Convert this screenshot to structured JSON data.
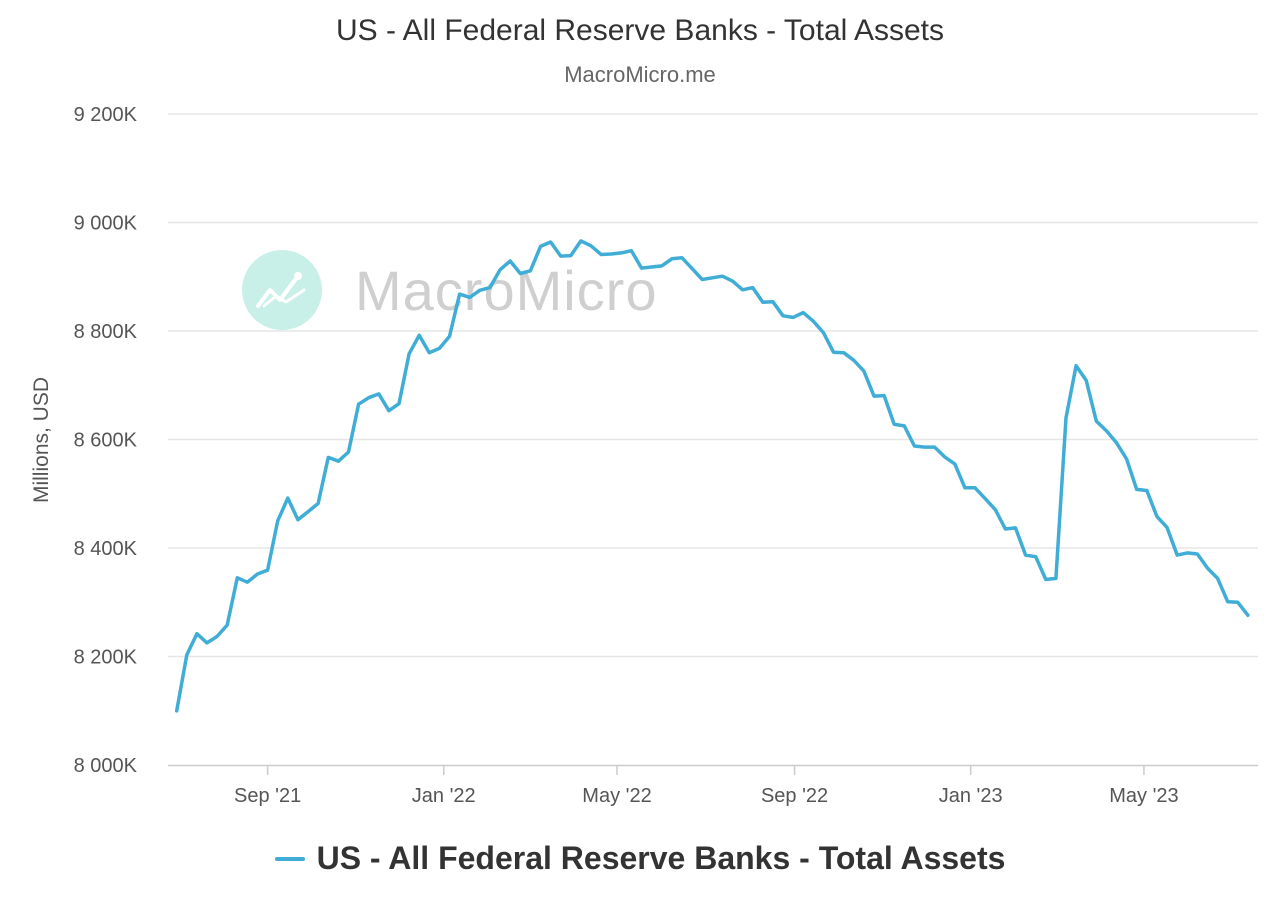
{
  "chart_data": {
    "type": "line",
    "title": "US - All Federal Reserve Banks - Total Assets",
    "subtitle": "MacroMicro.me",
    "ylabel": "Millions, USD",
    "xlabel": "",
    "ylim": [
      8000000,
      9200000
    ],
    "yticks": [
      8000000,
      8200000,
      8400000,
      8600000,
      8800000,
      9000000,
      9200000
    ],
    "ytick_labels": [
      "8 000K",
      "8 200K",
      "8 400K",
      "8 600K",
      "8 800K",
      "9 000K",
      "9 200K"
    ],
    "xlim": [
      "2021-06-24",
      "2023-07-19"
    ],
    "xticks": [
      {
        "label": "Sep '21",
        "date": "2021-09-01"
      },
      {
        "label": "Jan '22",
        "date": "2022-01-01"
      },
      {
        "label": "May '22",
        "date": "2022-05-01"
      },
      {
        "label": "Sep '22",
        "date": "2022-09-01"
      },
      {
        "label": "Jan '23",
        "date": "2023-01-01"
      },
      {
        "label": "May '23",
        "date": "2023-05-01"
      }
    ],
    "grid": true,
    "legend_position": "bottom",
    "series": [
      {
        "name": "US - All Federal Reserve Banks - Total Assets",
        "color": "#3fadd6",
        "points": [
          [
            "2021-06-30",
            8100000
          ],
          [
            "2021-07-07",
            8203000
          ],
          [
            "2021-07-14",
            8242000
          ],
          [
            "2021-07-21",
            8225000
          ],
          [
            "2021-07-28",
            8237000
          ],
          [
            "2021-08-04",
            8258000
          ],
          [
            "2021-08-11",
            8345000
          ],
          [
            "2021-08-18",
            8337000
          ],
          [
            "2021-08-25",
            8352000
          ],
          [
            "2021-09-01",
            8359000
          ],
          [
            "2021-09-08",
            8450000
          ],
          [
            "2021-09-15",
            8492000
          ],
          [
            "2021-09-22",
            8452000
          ],
          [
            "2021-09-29",
            8467000
          ],
          [
            "2021-10-06",
            8482000
          ],
          [
            "2021-10-13",
            8567000
          ],
          [
            "2021-10-20",
            8560000
          ],
          [
            "2021-10-27",
            8577000
          ],
          [
            "2021-11-03",
            8665000
          ],
          [
            "2021-11-10",
            8677000
          ],
          [
            "2021-11-17",
            8684000
          ],
          [
            "2021-11-24",
            8653000
          ],
          [
            "2021-12-01",
            8666000
          ],
          [
            "2021-12-08",
            8758000
          ],
          [
            "2021-12-15",
            8792000
          ],
          [
            "2021-12-22",
            8760000
          ],
          [
            "2021-12-29",
            8768000
          ],
          [
            "2022-01-05",
            8790000
          ],
          [
            "2022-01-12",
            8868000
          ],
          [
            "2022-01-19",
            8862000
          ],
          [
            "2022-01-26",
            8875000
          ],
          [
            "2022-02-02",
            8880000
          ],
          [
            "2022-02-09",
            8913000
          ],
          [
            "2022-02-16",
            8929000
          ],
          [
            "2022-02-23",
            8906000
          ],
          [
            "2022-03-02",
            8911000
          ],
          [
            "2022-03-09",
            8956000
          ],
          [
            "2022-03-16",
            8964000
          ],
          [
            "2022-03-23",
            8938000
          ],
          [
            "2022-03-30",
            8939000
          ],
          [
            "2022-04-06",
            8966000
          ],
          [
            "2022-04-13",
            8957000
          ],
          [
            "2022-04-20",
            8941000
          ],
          [
            "2022-04-27",
            8942000
          ],
          [
            "2022-05-04",
            8944000
          ],
          [
            "2022-05-11",
            8948000
          ],
          [
            "2022-05-18",
            8916000
          ],
          [
            "2022-05-25",
            8918000
          ],
          [
            "2022-06-01",
            8920000
          ],
          [
            "2022-06-08",
            8933000
          ],
          [
            "2022-06-15",
            8935000
          ],
          [
            "2022-06-22",
            8915000
          ],
          [
            "2022-06-29",
            8895000
          ],
          [
            "2022-07-06",
            8898000
          ],
          [
            "2022-07-13",
            8901000
          ],
          [
            "2022-07-20",
            8892000
          ],
          [
            "2022-07-27",
            8876000
          ],
          [
            "2022-08-03",
            8880000
          ],
          [
            "2022-08-10",
            8853000
          ],
          [
            "2022-08-17",
            8854000
          ],
          [
            "2022-08-24",
            8828000
          ],
          [
            "2022-08-31",
            8825000
          ],
          [
            "2022-09-07",
            8834000
          ],
          [
            "2022-09-14",
            8818000
          ],
          [
            "2022-09-21",
            8797000
          ],
          [
            "2022-09-28",
            8761000
          ],
          [
            "2022-10-05",
            8760000
          ],
          [
            "2022-10-12",
            8746000
          ],
          [
            "2022-10-19",
            8726000
          ],
          [
            "2022-10-26",
            8680000
          ],
          [
            "2022-11-02",
            8681000
          ],
          [
            "2022-11-09",
            8628000
          ],
          [
            "2022-11-16",
            8625000
          ],
          [
            "2022-11-23",
            8588000
          ],
          [
            "2022-11-30",
            8586000
          ],
          [
            "2022-12-07",
            8586000
          ],
          [
            "2022-12-14",
            8568000
          ],
          [
            "2022-12-21",
            8555000
          ],
          [
            "2022-12-28",
            8511000
          ],
          [
            "2023-01-04",
            8511000
          ],
          [
            "2023-01-11",
            8491000
          ],
          [
            "2023-01-18",
            8471000
          ],
          [
            "2023-01-25",
            8435000
          ],
          [
            "2023-02-01",
            8437000
          ],
          [
            "2023-02-08",
            8387000
          ],
          [
            "2023-02-15",
            8384000
          ],
          [
            "2023-02-22",
            8342000
          ],
          [
            "2023-03-01",
            8344000
          ],
          [
            "2023-03-08",
            8640000
          ],
          [
            "2023-03-15",
            8736000
          ],
          [
            "2023-03-22",
            8709000
          ],
          [
            "2023-03-29",
            8634000
          ],
          [
            "2023-04-05",
            8616000
          ],
          [
            "2023-04-12",
            8594000
          ],
          [
            "2023-04-19",
            8564000
          ],
          [
            "2023-04-26",
            8508000
          ],
          [
            "2023-05-03",
            8506000
          ],
          [
            "2023-05-10",
            8458000
          ],
          [
            "2023-05-17",
            8438000
          ],
          [
            "2023-05-24",
            8387000
          ],
          [
            "2023-05-31",
            8391000
          ],
          [
            "2023-06-07",
            8389000
          ],
          [
            "2023-06-14",
            8363000
          ],
          [
            "2023-06-21",
            8344000
          ],
          [
            "2023-06-28",
            8301000
          ],
          [
            "2023-07-05",
            8300000
          ],
          [
            "2023-07-12",
            8276000
          ]
        ]
      }
    ]
  },
  "watermark": {
    "text": "MacroMicro",
    "icon": "trend-chart-icon",
    "circle_color": "#c8f0e8"
  },
  "colors": {
    "gridline": "#e6e6e6",
    "axis": "#cccccc"
  }
}
